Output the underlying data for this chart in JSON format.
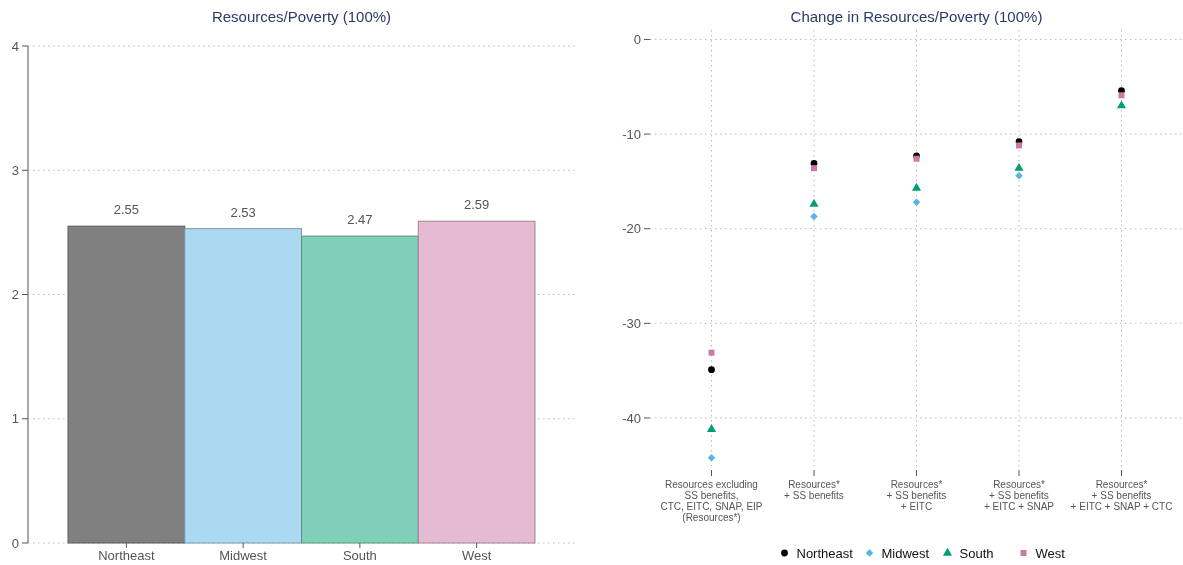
{
  "chart_data": [
    {
      "type": "bar",
      "title": "Resources/Poverty (100%)",
      "categories": [
        "Northeast",
        "Midwest",
        "South",
        "West"
      ],
      "values": [
        2.55,
        2.53,
        2.47,
        2.59
      ],
      "colors": [
        "#808080",
        "#abd9f2",
        "#80cfb8",
        "#e5bbd3"
      ],
      "ylim": [
        0,
        4
      ],
      "yticks": [
        0,
        1,
        2,
        3,
        4
      ],
      "grid": "y",
      "data_labels": true
    },
    {
      "type": "scatter",
      "title": "Change in Resources/Poverty (100%)",
      "categories": [
        "Resources excluding\nSS benefits,\nCTC, EITC, SNAP, EIP\n(Resources*)",
        "Resources*\n+ SS benefits",
        "Resources*\n+ SS benefits\n+ EITC",
        "Resources*\n+ SS benefits\n+ EITC + SNAP",
        "Resources*\n+ SS benefits\n+ EITC + SNAP + CTC"
      ],
      "ylim": [
        -45.5,
        1
      ],
      "yticks": [
        -40,
        -30,
        -20,
        -10,
        0
      ],
      "grid": true,
      "legend": "bottom",
      "series": [
        {
          "name": "Northeast",
          "color": "#000000",
          "marker": "circle",
          "values": [
            -34.9,
            -13.1,
            -12.3,
            -10.8,
            -5.4
          ]
        },
        {
          "name": "Midwest",
          "color": "#56b4e9",
          "marker": "diamond",
          "values": [
            -44.2,
            -18.7,
            -17.2,
            -14.4,
            null
          ]
        },
        {
          "name": "South",
          "color": "#009e73",
          "marker": "triangle",
          "values": [
            -41.2,
            -17.4,
            -15.7,
            -13.6,
            -7.0
          ]
        },
        {
          "name": "West",
          "color": "#cc79a7",
          "marker": "square",
          "values": [
            -33.1,
            -13.6,
            -12.6,
            -11.2,
            -5.9
          ]
        }
      ]
    }
  ]
}
